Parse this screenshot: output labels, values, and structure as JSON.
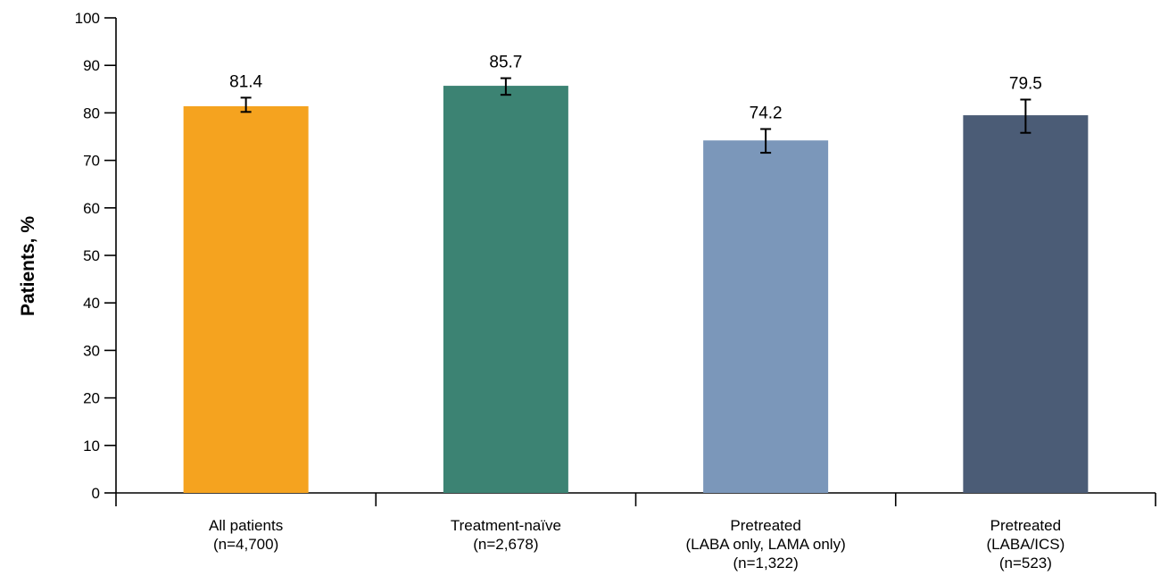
{
  "chart_data": {
    "type": "bar",
    "title": "",
    "xlabel": "",
    "ylabel": "Patients, %",
    "ylim": [
      0,
      100
    ],
    "yticks": [
      0,
      10,
      20,
      30,
      40,
      50,
      60,
      70,
      80,
      90,
      100
    ],
    "grid": false,
    "legend": "none",
    "categories": [
      [
        "All patients",
        "(n=4,700)"
      ],
      [
        "Treatment-naïve",
        "(n=2,678)"
      ],
      [
        "Pretreated",
        "(LABA only, LAMA only)",
        "(n=1,322)"
      ],
      [
        "Pretreated",
        "(LABA/ICS)",
        "(n=523)"
      ]
    ],
    "values": [
      81.4,
      85.7,
      74.2,
      79.5
    ],
    "value_labels": [
      "81.4",
      "85.7",
      "74.2",
      "79.5"
    ],
    "error_low": [
      80.2,
      83.8,
      71.6,
      75.8
    ],
    "error_high": [
      83.2,
      87.3,
      76.6,
      82.8
    ],
    "colors": [
      "#F5A31F",
      "#3C8373",
      "#7B97BA",
      "#4B5C76"
    ]
  }
}
